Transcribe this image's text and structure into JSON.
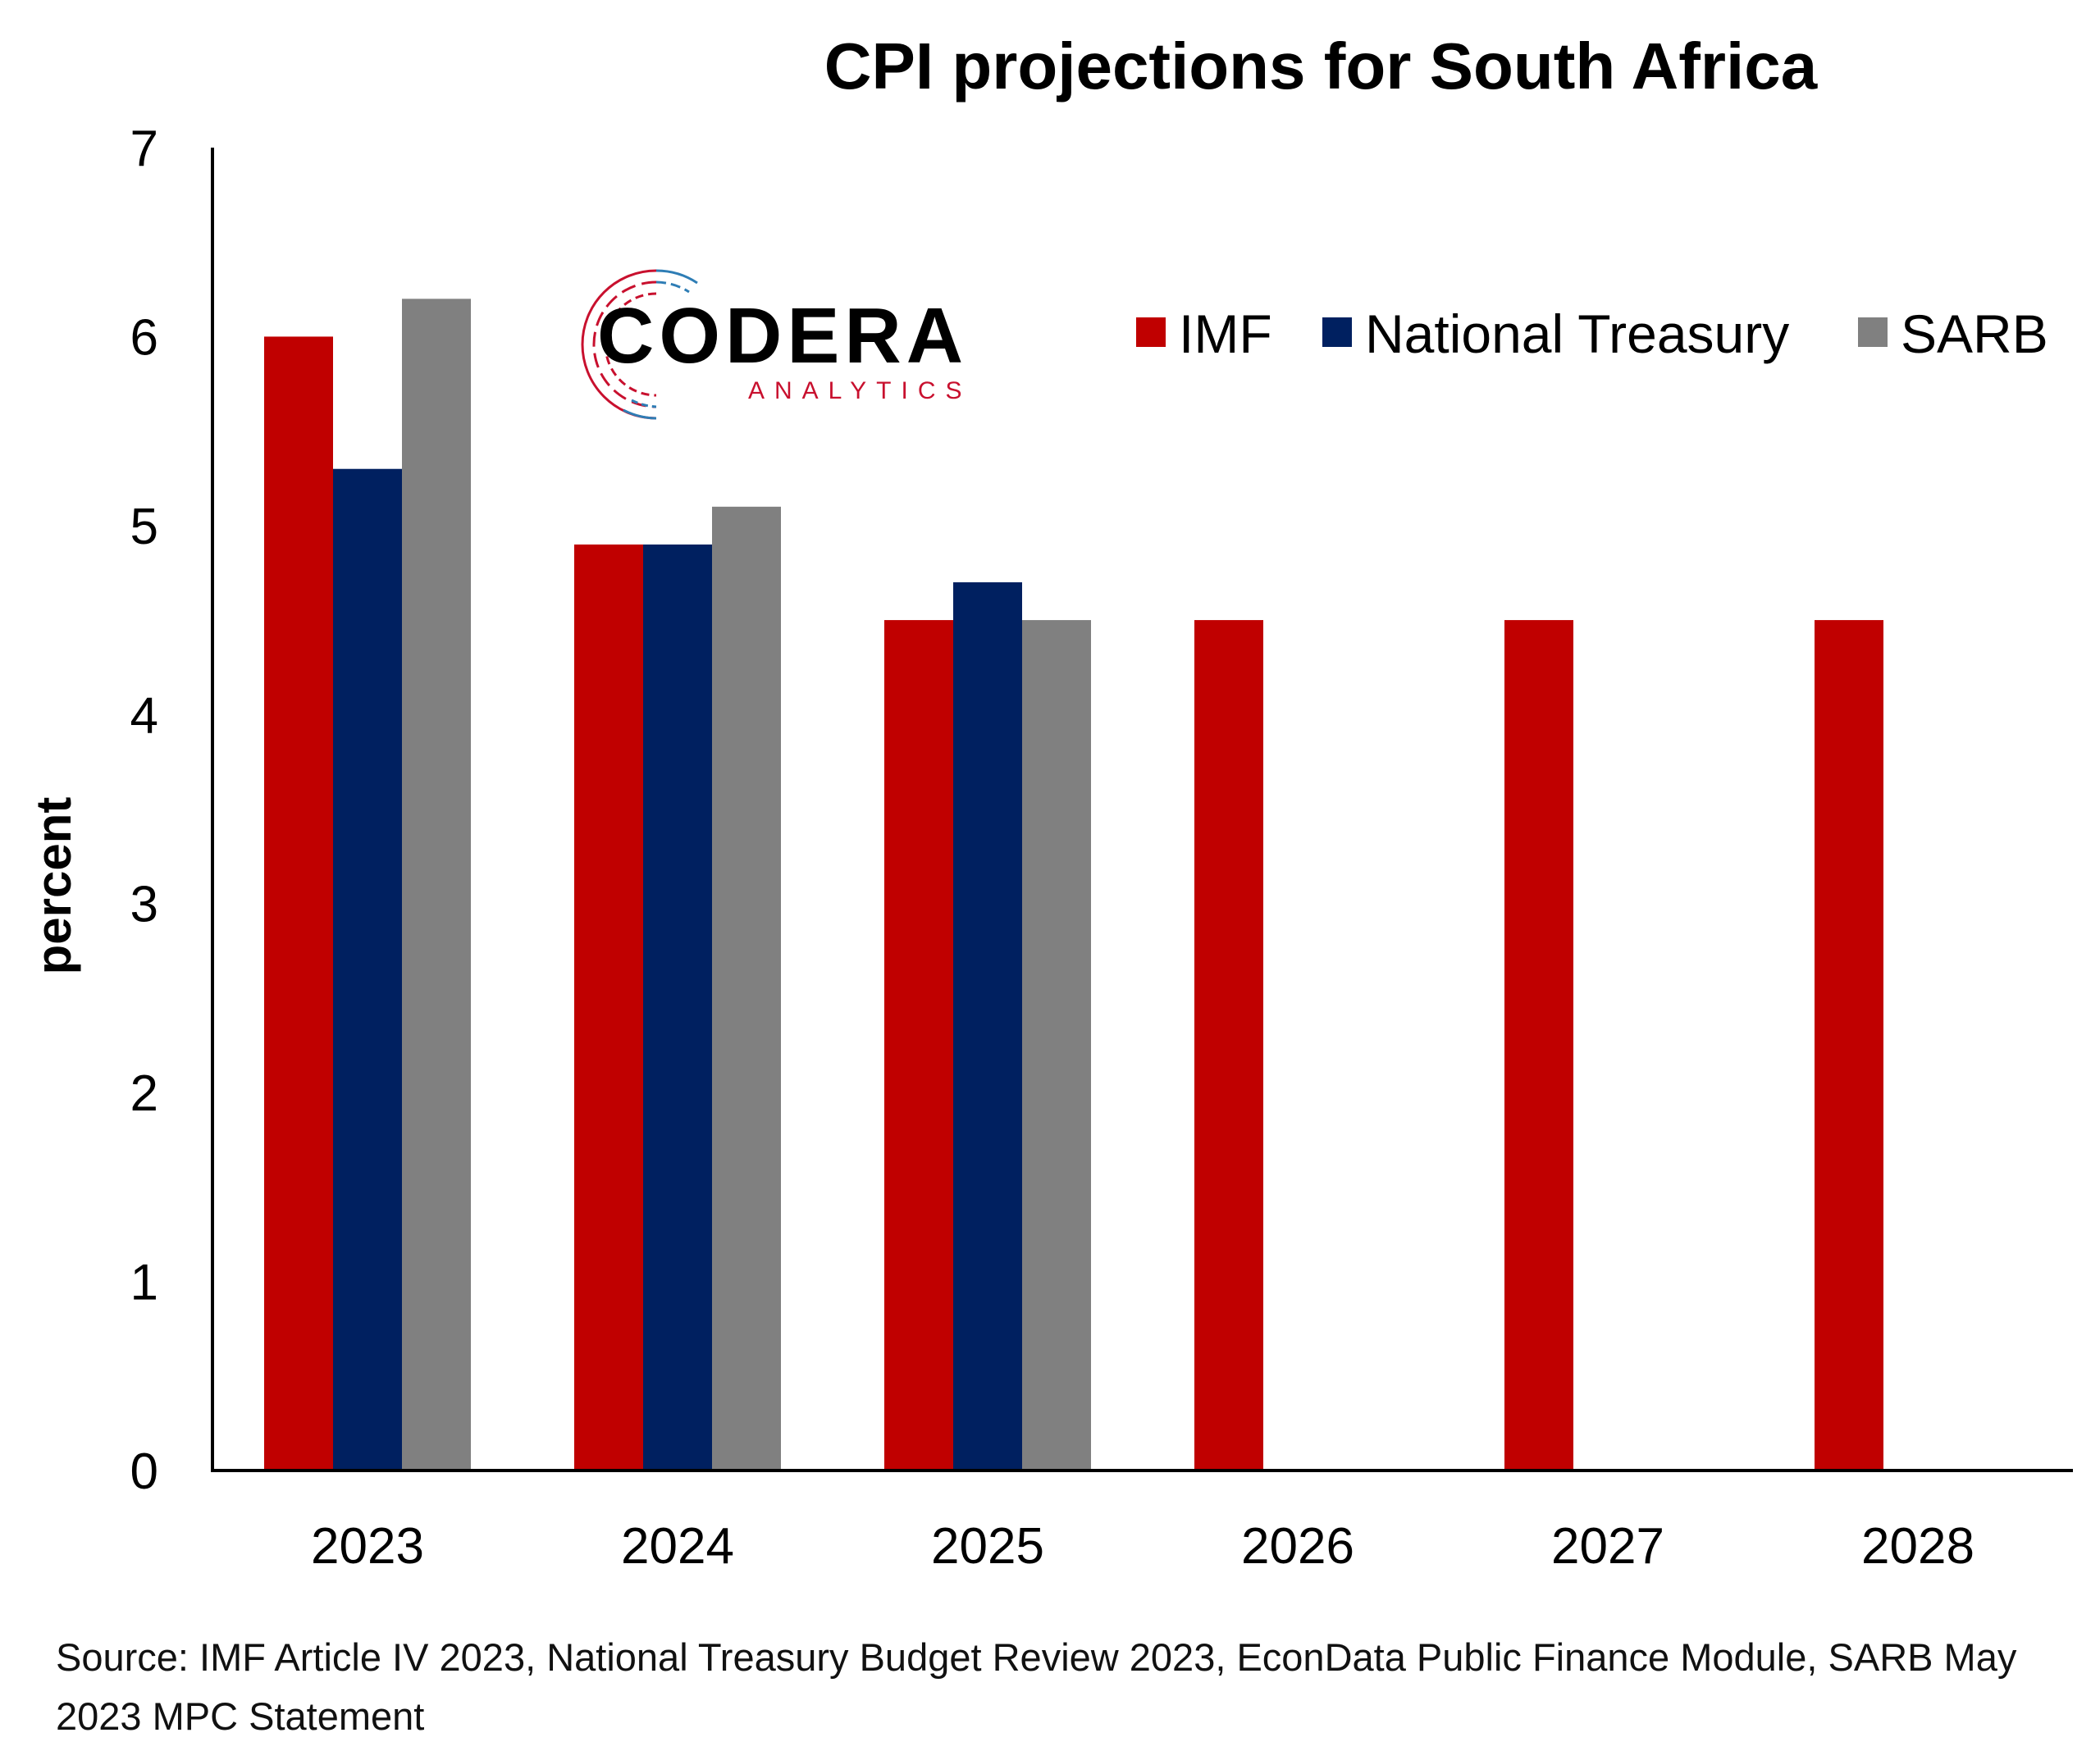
{
  "chart_data": {
    "type": "bar",
    "title": "CPI projections for South Africa",
    "ylabel": "percent",
    "xlabel": "",
    "categories": [
      "2023",
      "2024",
      "2025",
      "2026",
      "2027",
      "2028"
    ],
    "ylim": [
      0,
      7
    ],
    "yticks": [
      0,
      1,
      2,
      3,
      4,
      5,
      6,
      7
    ],
    "grid": false,
    "legend_position": "top-right",
    "series": [
      {
        "name": "IMF",
        "color": "#C00000",
        "values": [
          6.0,
          4.9,
          4.5,
          4.5,
          4.5,
          4.5
        ]
      },
      {
        "name": "National Treasury",
        "color": "#002060",
        "values": [
          5.3,
          4.9,
          4.7,
          null,
          null,
          null
        ]
      },
      {
        "name": "SARB",
        "color": "#808080",
        "values": [
          6.2,
          5.1,
          4.5,
          null,
          null,
          null
        ]
      }
    ]
  },
  "logo": {
    "name": "CODERA",
    "subtitle": "ANALYTICS",
    "red": "#C8102E",
    "blue": "#2E7DB5"
  },
  "source": "Source: IMF Article IV 2023, National Treasury Budget Review 2023, EconData Public Finance Module, SARB May 2023 MPC Statement"
}
